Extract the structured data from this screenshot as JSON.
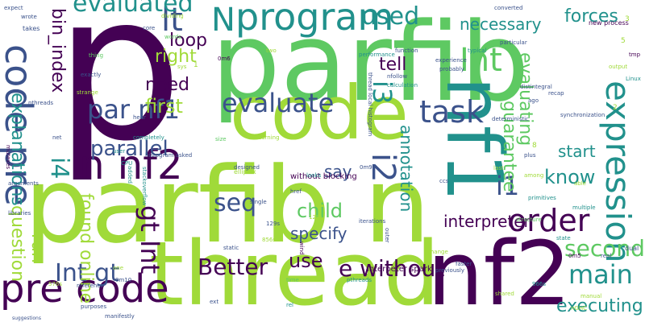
{
  "colors": {
    "background": "#ffffff",
    "palette": [
      "#440154",
      "#3b528b",
      "#21918c",
      "#5ec962",
      "#a0da39",
      "#fde725"
    ]
  },
  "words": [
    "p",
    "parfib",
    "parfib n",
    "code",
    "nf1",
    "thread",
    "nf2",
    "pre code",
    "code pre",
    "program",
    "n nf2",
    "par nf1",
    "evaluate",
    "task",
    "expression",
    "lt",
    "N",
    "evaluated",
    "used",
    "i3",
    "i4",
    "Int",
    "seq",
    "order",
    "main",
    "second",
    "child",
    "i2",
    "i1",
    "Int gt",
    "gt Int",
    "Better",
    "use",
    "parallel",
    "loop",
    "right",
    "need",
    "first",
    "necessary",
    "forces",
    "evaluating",
    "tell",
    "know",
    "say",
    "start",
    "specify",
    "interpreter",
    "annotation",
    "guarantee",
    "question",
    "run",
    "found online",
    "explanations",
    "e without",
    "executing",
    "bin_index",
    "without blocking",
    "histogram asked",
    "thread local histogram",
    "interpeter spark",
    "synchronization",
    "distintegral",
    "deterministic",
    "new process",
    "performance",
    "function",
    "calculation",
    "probably",
    "typical",
    "particular",
    "converted",
    "experience",
    "nfollow",
    "stackoverflow",
    "reference",
    "purposes",
    "manifestly",
    "suggestions",
    "mutexes",
    "arguments",
    "libraries",
    "exactly",
    "nthreads",
    "strange",
    "takes",
    "wrote",
    "expect",
    "thing",
    "dividing",
    "words",
    "core",
    "sys",
    "two",
    "hear",
    "completely",
    "learning",
    "size",
    "designed",
    "ellipsix",
    "CPU",
    "added",
    "net",
    "single",
    "href",
    "iterations",
    "static",
    "wind",
    "outer",
    "rel",
    "ext",
    "one",
    "time",
    "pthreads",
    "previously",
    "faster",
    "structure",
    "primitives",
    "multiple",
    "state",
    "dual",
    "real",
    "tmp",
    "output",
    "Linux",
    "ago",
    "recap",
    "last",
    "plus",
    "able",
    "user",
    "change",
    "looks",
    "ccs",
    "among",
    "0m6",
    "0m5",
    "0m10",
    "0m9",
    "128s",
    "129s",
    "856s",
    "966s",
    "576s",
    "manual",
    "shared",
    "nGHC",
    "1",
    "2",
    "5",
    "8",
    "3"
  ]
}
